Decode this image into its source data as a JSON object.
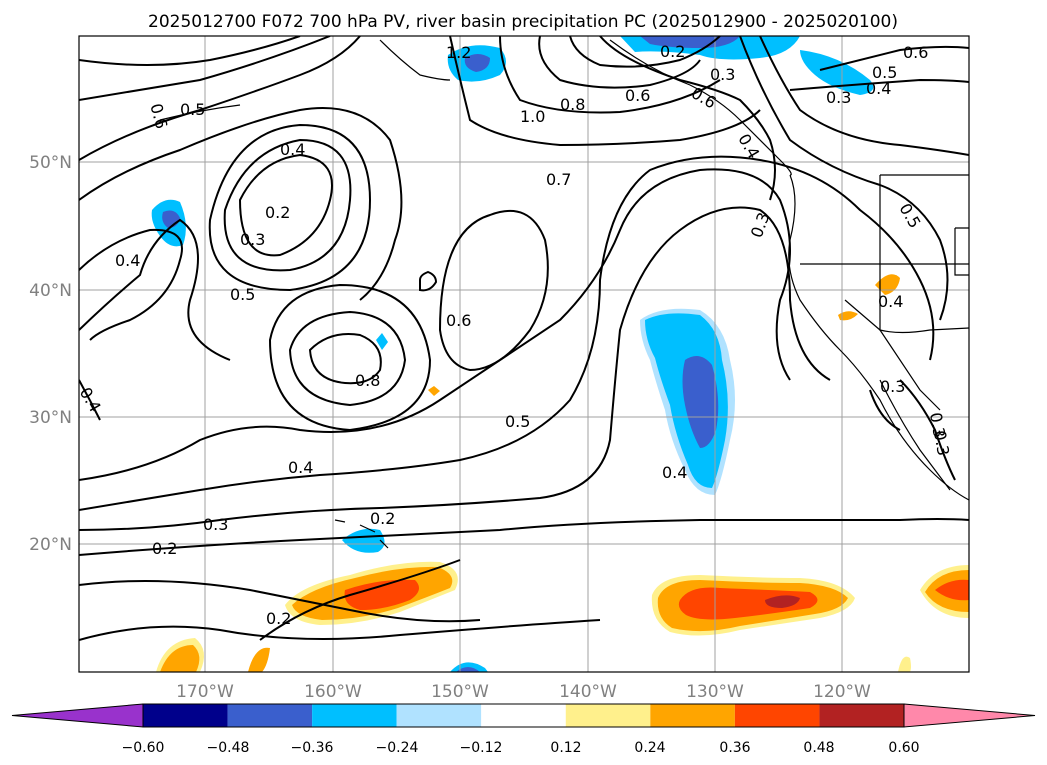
{
  "title": "2025012700 F072 700 hPa PV, river basin precipitation PC (2025012900 - 2025020100)",
  "chart_data": {
    "type": "map",
    "lon_ticks": [
      "170°W",
      "160°W",
      "150°W",
      "140°W",
      "130°W",
      "120°W"
    ],
    "lat_ticks": [
      "50°N",
      "40°N",
      "30°N",
      "20°N"
    ],
    "contour_labels": [
      "1.2",
      "0.2",
      "0.3",
      "0.6",
      "0.5",
      "0.4",
      "0.6",
      "0.5",
      "1.0",
      "0.8",
      "0.6",
      "0.3",
      "0.3",
      "0.4",
      "0.7",
      "0.2",
      "0.3",
      "0.4",
      "0.4",
      "0.5",
      "0.5",
      "0.3",
      "0.6",
      "0.8",
      "0.4",
      "0.5",
      "0.4",
      "0.4",
      "0.3",
      "0.3",
      "0.2",
      "0.3",
      "0.2",
      "0.2",
      "0.4",
      "0.6"
    ],
    "colorbar": {
      "tick_labels": [
        "−0.60",
        "−0.48",
        "−0.36",
        "−0.24",
        "−0.12",
        "0.12",
        "0.24",
        "0.36",
        "0.48",
        "0.60"
      ],
      "colors": [
        "#9932cc",
        "#00008b",
        "#3a5fcd",
        "#00bfff",
        "#b0e2ff",
        "#ffffff",
        "#fff08c",
        "#ffa500",
        "#ff4500",
        "#b22222",
        "#ff88aa"
      ]
    },
    "colors": {
      "contour": "#000000",
      "grid": "#a0a0a0",
      "tick_label": "#808080"
    }
  }
}
